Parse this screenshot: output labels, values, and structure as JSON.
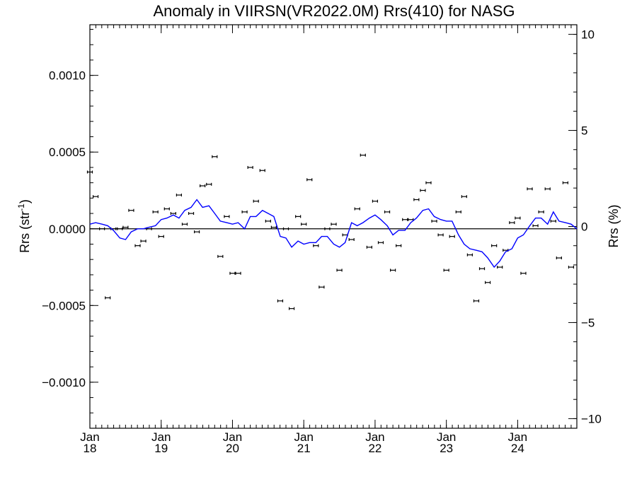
{
  "chart_data": {
    "type": "scatter",
    "title": "Anomaly in VIIRSN(VR2022.0M) Rrs(410) for NASG",
    "ylabel_left": "Rrs (str",
    "ylabel_left_sup": "-1",
    "ylabel_left_close": ")",
    "ylabel_right": "Rrs (%)",
    "xlim": [
      2018.0,
      2024.83
    ],
    "ylim_left": [
      -0.0013,
      0.00133
    ],
    "ylim_right": [
      -10.5,
      10.5
    ],
    "y_left_ticks": [
      {
        "value": 0.001,
        "label": "0.0010"
      },
      {
        "value": 0.0005,
        "label": "0.0005"
      },
      {
        "value": 0.0,
        "label": "0.0000"
      },
      {
        "value": -0.0005,
        "label": "−0.0005"
      },
      {
        "value": -0.001,
        "label": "−0.0010"
      }
    ],
    "y_right_ticks": [
      {
        "value": 10,
        "label": "10"
      },
      {
        "value": 5,
        "label": "5"
      },
      {
        "value": 0,
        "label": "0"
      },
      {
        "value": -5,
        "label": "−5"
      },
      {
        "value": -10,
        "label": "−10"
      }
    ],
    "x_ticks": [
      {
        "value": 2018,
        "month": "Jan",
        "year": "18"
      },
      {
        "value": 2019,
        "month": "Jan",
        "year": "19"
      },
      {
        "value": 2020,
        "month": "Jan",
        "year": "20"
      },
      {
        "value": 2021,
        "month": "Jan",
        "year": "21"
      },
      {
        "value": 2022,
        "month": "Jan",
        "year": "22"
      },
      {
        "value": 2023,
        "month": "Jan",
        "year": "23"
      },
      {
        "value": 2024,
        "month": "Jan",
        "year": "24"
      }
    ],
    "monthly_anomaly_points": [
      [
        2018.0,
        0.00037
      ],
      [
        2018.08,
        0.00021
      ],
      [
        2018.17,
        0.0
      ],
      [
        2018.25,
        -0.00045
      ],
      [
        2018.33,
        0.0
      ],
      [
        2018.42,
        0.0
      ],
      [
        2018.5,
        1e-05
      ],
      [
        2018.58,
        0.00012
      ],
      [
        2018.67,
        -0.00011
      ],
      [
        2018.75,
        -8e-05
      ],
      [
        2018.83,
        0.0
      ],
      [
        2018.92,
        0.00011
      ],
      [
        2019.0,
        -5e-05
      ],
      [
        2019.08,
        0.00013
      ],
      [
        2019.17,
        0.0001
      ],
      [
        2019.25,
        0.00022
      ],
      [
        2019.33,
        3e-05
      ],
      [
        2019.42,
        0.0001
      ],
      [
        2019.5,
        -2e-05
      ],
      [
        2019.58,
        0.00028
      ],
      [
        2019.67,
        0.00029
      ],
      [
        2019.75,
        0.00047
      ],
      [
        2019.83,
        -0.00018
      ],
      [
        2019.92,
        8e-05
      ],
      [
        2020.0,
        -0.00029
      ],
      [
        2020.08,
        -0.00029
      ],
      [
        2020.17,
        0.00011
      ],
      [
        2020.25,
        0.0004
      ],
      [
        2020.33,
        0.00018
      ],
      [
        2020.42,
        0.00038
      ],
      [
        2020.5,
        5e-05
      ],
      [
        2020.58,
        1e-05
      ],
      [
        2020.67,
        -0.00047
      ],
      [
        2020.75,
        0.0
      ],
      [
        2020.83,
        -0.00052
      ],
      [
        2020.92,
        8e-05
      ],
      [
        2021.0,
        3e-05
      ],
      [
        2021.08,
        0.00032
      ],
      [
        2021.17,
        -0.00011
      ],
      [
        2021.25,
        -0.00038
      ],
      [
        2021.33,
        0.0
      ],
      [
        2021.42,
        3e-05
      ],
      [
        2021.5,
        -0.00027
      ],
      [
        2021.58,
        -4e-05
      ],
      [
        2021.67,
        -7e-05
      ],
      [
        2021.75,
        0.00013
      ],
      [
        2021.83,
        0.00048
      ],
      [
        2021.92,
        -0.00012
      ],
      [
        2022.0,
        0.00018
      ],
      [
        2022.08,
        -9e-05
      ],
      [
        2022.17,
        0.00011
      ],
      [
        2022.25,
        -0.00027
      ],
      [
        2022.33,
        -0.00011
      ],
      [
        2022.42,
        6e-05
      ],
      [
        2022.5,
        6e-05
      ],
      [
        2022.58,
        0.00019
      ],
      [
        2022.67,
        0.00025
      ],
      [
        2022.75,
        0.0003
      ],
      [
        2022.83,
        5e-05
      ],
      [
        2022.92,
        -4e-05
      ],
      [
        2023.0,
        -0.00027
      ],
      [
        2023.08,
        -5e-05
      ],
      [
        2023.17,
        0.00011
      ],
      [
        2023.25,
        0.00021
      ],
      [
        2023.33,
        -0.00017
      ],
      [
        2023.42,
        -0.00047
      ],
      [
        2023.5,
        -0.00026
      ],
      [
        2023.58,
        -0.00035
      ],
      [
        2023.67,
        -0.00011
      ],
      [
        2023.75,
        -0.00025
      ],
      [
        2023.83,
        -0.00014
      ],
      [
        2023.92,
        4e-05
      ],
      [
        2024.0,
        7e-05
      ],
      [
        2024.08,
        -0.00029
      ],
      [
        2024.17,
        0.00026
      ],
      [
        2024.25,
        2e-05
      ],
      [
        2024.33,
        0.00011
      ],
      [
        2024.42,
        0.00026
      ],
      [
        2024.5,
        5e-05
      ],
      [
        2024.58,
        -0.00019
      ],
      [
        2024.67,
        0.0003
      ],
      [
        2024.75,
        -0.00025
      ]
    ],
    "running_mean_line": [
      [
        2018.0,
        3e-05
      ],
      [
        2018.08,
        4e-05
      ],
      [
        2018.17,
        3e-05
      ],
      [
        2018.25,
        2e-05
      ],
      [
        2018.33,
        -1e-05
      ],
      [
        2018.42,
        -6e-05
      ],
      [
        2018.5,
        -7e-05
      ],
      [
        2018.58,
        -2e-05
      ],
      [
        2018.67,
        0.0
      ],
      [
        2018.75,
        0.0
      ],
      [
        2018.83,
        1e-05
      ],
      [
        2018.92,
        2e-05
      ],
      [
        2019.0,
        6e-05
      ],
      [
        2019.08,
        7e-05
      ],
      [
        2019.17,
        9e-05
      ],
      [
        2019.25,
        7e-05
      ],
      [
        2019.33,
        0.00012
      ],
      [
        2019.42,
        0.00014
      ],
      [
        2019.5,
        0.00019
      ],
      [
        2019.58,
        0.00014
      ],
      [
        2019.67,
        0.00015
      ],
      [
        2019.75,
        0.0001
      ],
      [
        2019.83,
        5e-05
      ],
      [
        2019.92,
        4e-05
      ],
      [
        2020.0,
        3e-05
      ],
      [
        2020.08,
        4e-05
      ],
      [
        2020.17,
        0.0
      ],
      [
        2020.25,
        8e-05
      ],
      [
        2020.33,
        8e-05
      ],
      [
        2020.42,
        0.00012
      ],
      [
        2020.5,
        0.0001
      ],
      [
        2020.58,
        8e-05
      ],
      [
        2020.67,
        -5e-05
      ],
      [
        2020.75,
        -6e-05
      ],
      [
        2020.83,
        -0.00012
      ],
      [
        2020.92,
        -8e-05
      ],
      [
        2021.0,
        -0.0001
      ],
      [
        2021.08,
        -9e-05
      ],
      [
        2021.17,
        -9e-05
      ],
      [
        2021.25,
        -5e-05
      ],
      [
        2021.33,
        -5e-05
      ],
      [
        2021.42,
        -0.0001
      ],
      [
        2021.5,
        -0.00012
      ],
      [
        2021.58,
        -9e-05
      ],
      [
        2021.67,
        4e-05
      ],
      [
        2021.75,
        2e-05
      ],
      [
        2021.83,
        4e-05
      ],
      [
        2021.92,
        7e-05
      ],
      [
        2022.0,
        9e-05
      ],
      [
        2022.08,
        6e-05
      ],
      [
        2022.17,
        2e-05
      ],
      [
        2022.25,
        -4e-05
      ],
      [
        2022.33,
        -1e-05
      ],
      [
        2022.42,
        -1e-05
      ],
      [
        2022.5,
        4e-05
      ],
      [
        2022.58,
        7e-05
      ],
      [
        2022.67,
        0.00012
      ],
      [
        2022.75,
        0.00013
      ],
      [
        2022.83,
        8e-05
      ],
      [
        2022.92,
        6e-05
      ],
      [
        2023.0,
        5e-05
      ],
      [
        2023.08,
        5e-05
      ],
      [
        2023.17,
        -4e-05
      ],
      [
        2023.25,
        -0.0001
      ],
      [
        2023.33,
        -0.00013
      ],
      [
        2023.42,
        -0.00014
      ],
      [
        2023.5,
        -0.00015
      ],
      [
        2023.58,
        -0.00019
      ],
      [
        2023.67,
        -0.00025
      ],
      [
        2023.75,
        -0.00021
      ],
      [
        2023.83,
        -0.00015
      ],
      [
        2023.92,
        -0.00013
      ],
      [
        2024.0,
        -6e-05
      ],
      [
        2024.08,
        -4e-05
      ],
      [
        2024.17,
        2e-05
      ],
      [
        2024.25,
        7e-05
      ],
      [
        2024.33,
        7e-05
      ],
      [
        2024.42,
        3e-05
      ],
      [
        2024.5,
        0.00011
      ],
      [
        2024.58,
        5e-05
      ],
      [
        2024.67,
        4e-05
      ],
      [
        2024.75,
        3e-05
      ],
      [
        2024.83,
        0.0
      ]
    ],
    "colors": {
      "line": "#0000ff",
      "points": "#000000",
      "zero_line": "#000000"
    }
  }
}
